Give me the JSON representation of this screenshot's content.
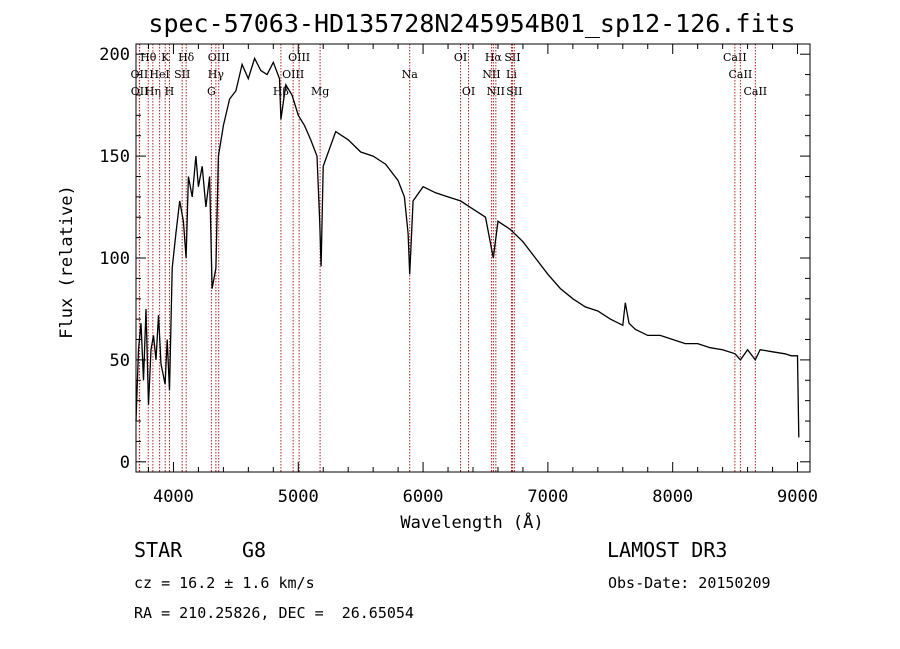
{
  "chart_data": {
    "type": "line",
    "title": "spec-57063-HD135728N245954B01_sp12-126.fits",
    "xlabel": "Wavelength (Å)",
    "ylabel": "Flux (relative)",
    "xlim": [
      3700,
      9100
    ],
    "ylim": [
      -5,
      205
    ],
    "x_ticks": [
      4000,
      5000,
      6000,
      7000,
      8000,
      9000
    ],
    "y_ticks": [
      0,
      50,
      100,
      150,
      200
    ],
    "series": [
      {
        "name": "spectrum",
        "color": "#000000",
        "points": [
          [
            3700,
            20
          ],
          [
            3720,
            55
          ],
          [
            3740,
            68
          ],
          [
            3760,
            40
          ],
          [
            3780,
            75
          ],
          [
            3800,
            28
          ],
          [
            3820,
            55
          ],
          [
            3840,
            62
          ],
          [
            3860,
            50
          ],
          [
            3880,
            72
          ],
          [
            3900,
            48
          ],
          [
            3920,
            42
          ],
          [
            3933,
            38
          ],
          [
            3950,
            60
          ],
          [
            3968,
            35
          ],
          [
            3990,
            95
          ],
          [
            4020,
            112
          ],
          [
            4050,
            128
          ],
          [
            4080,
            118
          ],
          [
            4101,
            100
          ],
          [
            4120,
            140
          ],
          [
            4150,
            130
          ],
          [
            4180,
            150
          ],
          [
            4200,
            135
          ],
          [
            4230,
            145
          ],
          [
            4260,
            125
          ],
          [
            4290,
            140
          ],
          [
            4310,
            85
          ],
          [
            4340,
            95
          ],
          [
            4360,
            150
          ],
          [
            4400,
            165
          ],
          [
            4450,
            178
          ],
          [
            4500,
            182
          ],
          [
            4550,
            195
          ],
          [
            4600,
            188
          ],
          [
            4650,
            198
          ],
          [
            4700,
            192
          ],
          [
            4750,
            190
          ],
          [
            4800,
            196
          ],
          [
            4850,
            188
          ],
          [
            4861,
            168
          ],
          [
            4900,
            185
          ],
          [
            4950,
            180
          ],
          [
            5000,
            170
          ],
          [
            5050,
            165
          ],
          [
            5100,
            158
          ],
          [
            5150,
            150
          ],
          [
            5172,
            118
          ],
          [
            5183,
            96
          ],
          [
            5200,
            145
          ],
          [
            5300,
            162
          ],
          [
            5400,
            158
          ],
          [
            5500,
            152
          ],
          [
            5600,
            150
          ],
          [
            5700,
            146
          ],
          [
            5800,
            138
          ],
          [
            5850,
            130
          ],
          [
            5880,
            112
          ],
          [
            5893,
            92
          ],
          [
            5920,
            128
          ],
          [
            6000,
            135
          ],
          [
            6100,
            132
          ],
          [
            6200,
            130
          ],
          [
            6300,
            128
          ],
          [
            6400,
            124
          ],
          [
            6500,
            120
          ],
          [
            6563,
            100
          ],
          [
            6600,
            118
          ],
          [
            6700,
            114
          ],
          [
            6800,
            108
          ],
          [
            6900,
            100
          ],
          [
            7000,
            92
          ],
          [
            7100,
            85
          ],
          [
            7200,
            80
          ],
          [
            7300,
            76
          ],
          [
            7400,
            74
          ],
          [
            7500,
            70
          ],
          [
            7600,
            67
          ],
          [
            7620,
            78
          ],
          [
            7650,
            68
          ],
          [
            7700,
            65
          ],
          [
            7800,
            62
          ],
          [
            7900,
            62
          ],
          [
            8000,
            60
          ],
          [
            8100,
            58
          ],
          [
            8200,
            58
          ],
          [
            8300,
            56
          ],
          [
            8400,
            55
          ],
          [
            8500,
            53
          ],
          [
            8542,
            50
          ],
          [
            8600,
            55
          ],
          [
            8662,
            50
          ],
          [
            8700,
            55
          ],
          [
            8800,
            54
          ],
          [
            8900,
            53
          ],
          [
            8950,
            52
          ],
          [
            9000,
            52
          ],
          [
            9010,
            12
          ]
        ]
      }
    ],
    "line_markers": [
      {
        "label": "Hθ",
        "x": 3798,
        "row": 0
      },
      {
        "label": "OII",
        "x": 3727,
        "row": 1
      },
      {
        "label": "OII",
        "x": 3729,
        "row": 2
      },
      {
        "label": "Hη",
        "x": 3835,
        "row": 2
      },
      {
        "label": "HeI",
        "x": 3889,
        "row": 1
      },
      {
        "label": "K",
        "x": 3934,
        "row": 0
      },
      {
        "label": "H",
        "x": 3968,
        "row": 2
      },
      {
        "label": "SII",
        "x": 4070,
        "row": 1
      },
      {
        "label": "Hδ",
        "x": 4102,
        "row": 0
      },
      {
        "label": "OIII",
        "x": 4363,
        "row": 0
      },
      {
        "label": "Hγ",
        "x": 4340,
        "row": 1
      },
      {
        "label": "G",
        "x": 4304,
        "row": 2
      },
      {
        "label": "Hβ",
        "x": 4861,
        "row": 2
      },
      {
        "label": "OIII",
        "x": 4959,
        "row": 1
      },
      {
        "label": "OIII",
        "x": 5007,
        "row": 0
      },
      {
        "label": "Mg",
        "x": 5175,
        "row": 2
      },
      {
        "label": "Na",
        "x": 5893,
        "row": 1
      },
      {
        "label": "OI",
        "x": 6300,
        "row": 0
      },
      {
        "label": "OI",
        "x": 6364,
        "row": 2
      },
      {
        "label": "Hα",
        "x": 6563,
        "row": 0
      },
      {
        "label": "NII",
        "x": 6548,
        "row": 1
      },
      {
        "label": "NII",
        "x": 6583,
        "row": 2
      },
      {
        "label": "SII",
        "x": 6716,
        "row": 0
      },
      {
        "label": "Li",
        "x": 6708,
        "row": 1
      },
      {
        "label": "SII",
        "x": 6731,
        "row": 2
      },
      {
        "label": "CaII",
        "x": 8498,
        "row": 0
      },
      {
        "label": "CaII",
        "x": 8542,
        "row": 1
      },
      {
        "label": "CaII",
        "x": 8662,
        "row": 2
      }
    ],
    "marker_color": "#b22222"
  },
  "info": {
    "object_class": "STAR",
    "subclass": "G8",
    "survey": "LAMOST DR3",
    "redshift_line": "cz = 16.2 ± 1.6 km/s",
    "obs_date": "Obs-Date: 20150209",
    "coords": "RA = 210.25826, DEC =  26.65054"
  }
}
